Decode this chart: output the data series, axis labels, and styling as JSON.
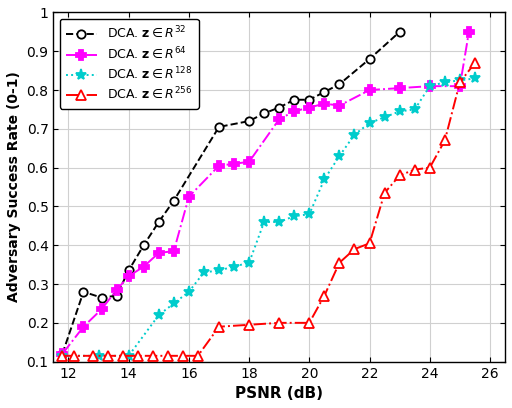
{
  "title": "",
  "xlabel": "PSNR (dB)",
  "ylabel": "Adversary Success Rate (0-1)",
  "xlim": [
    11.5,
    26.5
  ],
  "ylim": [
    0.1,
    1.0
  ],
  "xticks": [
    12,
    14,
    16,
    18,
    20,
    22,
    24,
    26
  ],
  "yticks": [
    0.1,
    0.2,
    0.3,
    0.4,
    0.5,
    0.6,
    0.7,
    0.8,
    0.9,
    1
  ],
  "ytick_labels": [
    "0.1",
    "0.2",
    "0.3",
    "0.4",
    "0.5",
    "0.6",
    "0.7",
    "0.8",
    "0.9",
    "1"
  ],
  "series": [
    {
      "label": "DCA. $\\mathbf{z} \\in R^{32}$",
      "color": "#000000",
      "linestyle": "--",
      "marker": "o",
      "markersize": 6,
      "markerfacecolor": "white",
      "markeredgecolor": "#000000",
      "x": [
        11.8,
        12.5,
        13.1,
        13.6,
        14.0,
        14.5,
        15.0,
        15.5,
        17.0,
        18.0,
        18.5,
        19.0,
        19.5,
        20.0,
        20.5,
        21.0,
        22.0,
        23.0
      ],
      "y": [
        0.12,
        0.28,
        0.265,
        0.27,
        0.335,
        0.4,
        0.46,
        0.515,
        0.705,
        0.72,
        0.74,
        0.755,
        0.775,
        0.775,
        0.795,
        0.815,
        0.88,
        0.95
      ]
    },
    {
      "label": "DCA. $\\mathbf{z} \\in R^{64}$",
      "color": "#FF00FF",
      "linestyle": "-.",
      "marker": "P",
      "markersize": 7,
      "markerfacecolor": "#FF00FF",
      "markeredgecolor": "#FF00FF",
      "x": [
        11.8,
        12.5,
        13.1,
        13.6,
        14.0,
        14.5,
        15.0,
        15.5,
        16.0,
        17.0,
        17.5,
        18.0,
        19.0,
        19.5,
        20.0,
        20.5,
        21.0,
        22.0,
        23.0,
        24.0,
        25.0,
        25.3
      ],
      "y": [
        0.12,
        0.19,
        0.235,
        0.285,
        0.32,
        0.345,
        0.38,
        0.385,
        0.525,
        0.605,
        0.61,
        0.615,
        0.725,
        0.745,
        0.755,
        0.765,
        0.76,
        0.8,
        0.805,
        0.81,
        0.81,
        0.95
      ]
    },
    {
      "label": "DCA. $\\mathbf{z} \\in R^{128}$",
      "color": "#00CCCC",
      "linestyle": ":",
      "marker": "*",
      "markersize": 8,
      "markerfacecolor": "#00CCCC",
      "markeredgecolor": "#00CCCC",
      "x": [
        11.8,
        13.0,
        14.0,
        15.0,
        15.5,
        16.0,
        16.5,
        17.0,
        17.5,
        18.0,
        18.5,
        19.0,
        19.5,
        20.0,
        20.5,
        21.0,
        21.5,
        22.0,
        22.5,
        23.0,
        23.5,
        24.0,
        24.5,
        25.0,
        25.5
      ],
      "y": [
        0.115,
        0.115,
        0.115,
        0.22,
        0.25,
        0.28,
        0.33,
        0.335,
        0.345,
        0.355,
        0.46,
        0.46,
        0.475,
        0.48,
        0.57,
        0.63,
        0.685,
        0.715,
        0.73,
        0.745,
        0.75,
        0.81,
        0.82,
        0.825,
        0.83
      ]
    },
    {
      "label": "DCA. $\\mathbf{z} \\in R^{256}$",
      "color": "#FF0000",
      "linestyle": "-.",
      "marker": "^",
      "markersize": 7,
      "markerfacecolor": "white",
      "markeredgecolor": "#FF0000",
      "x": [
        11.8,
        12.2,
        12.8,
        13.3,
        13.8,
        14.3,
        14.8,
        15.3,
        15.8,
        16.3,
        17.0,
        18.0,
        19.0,
        20.0,
        20.5,
        21.0,
        21.5,
        22.0,
        22.5,
        23.0,
        23.5,
        24.0,
        24.5,
        25.0,
        25.5
      ],
      "y": [
        0.115,
        0.115,
        0.115,
        0.115,
        0.115,
        0.115,
        0.115,
        0.115,
        0.115,
        0.115,
        0.19,
        0.195,
        0.2,
        0.2,
        0.27,
        0.355,
        0.39,
        0.405,
        0.535,
        0.58,
        0.595,
        0.6,
        0.67,
        0.82,
        0.87
      ]
    }
  ],
  "background_color": "#ffffff",
  "grid_color": "#d0d0d0"
}
